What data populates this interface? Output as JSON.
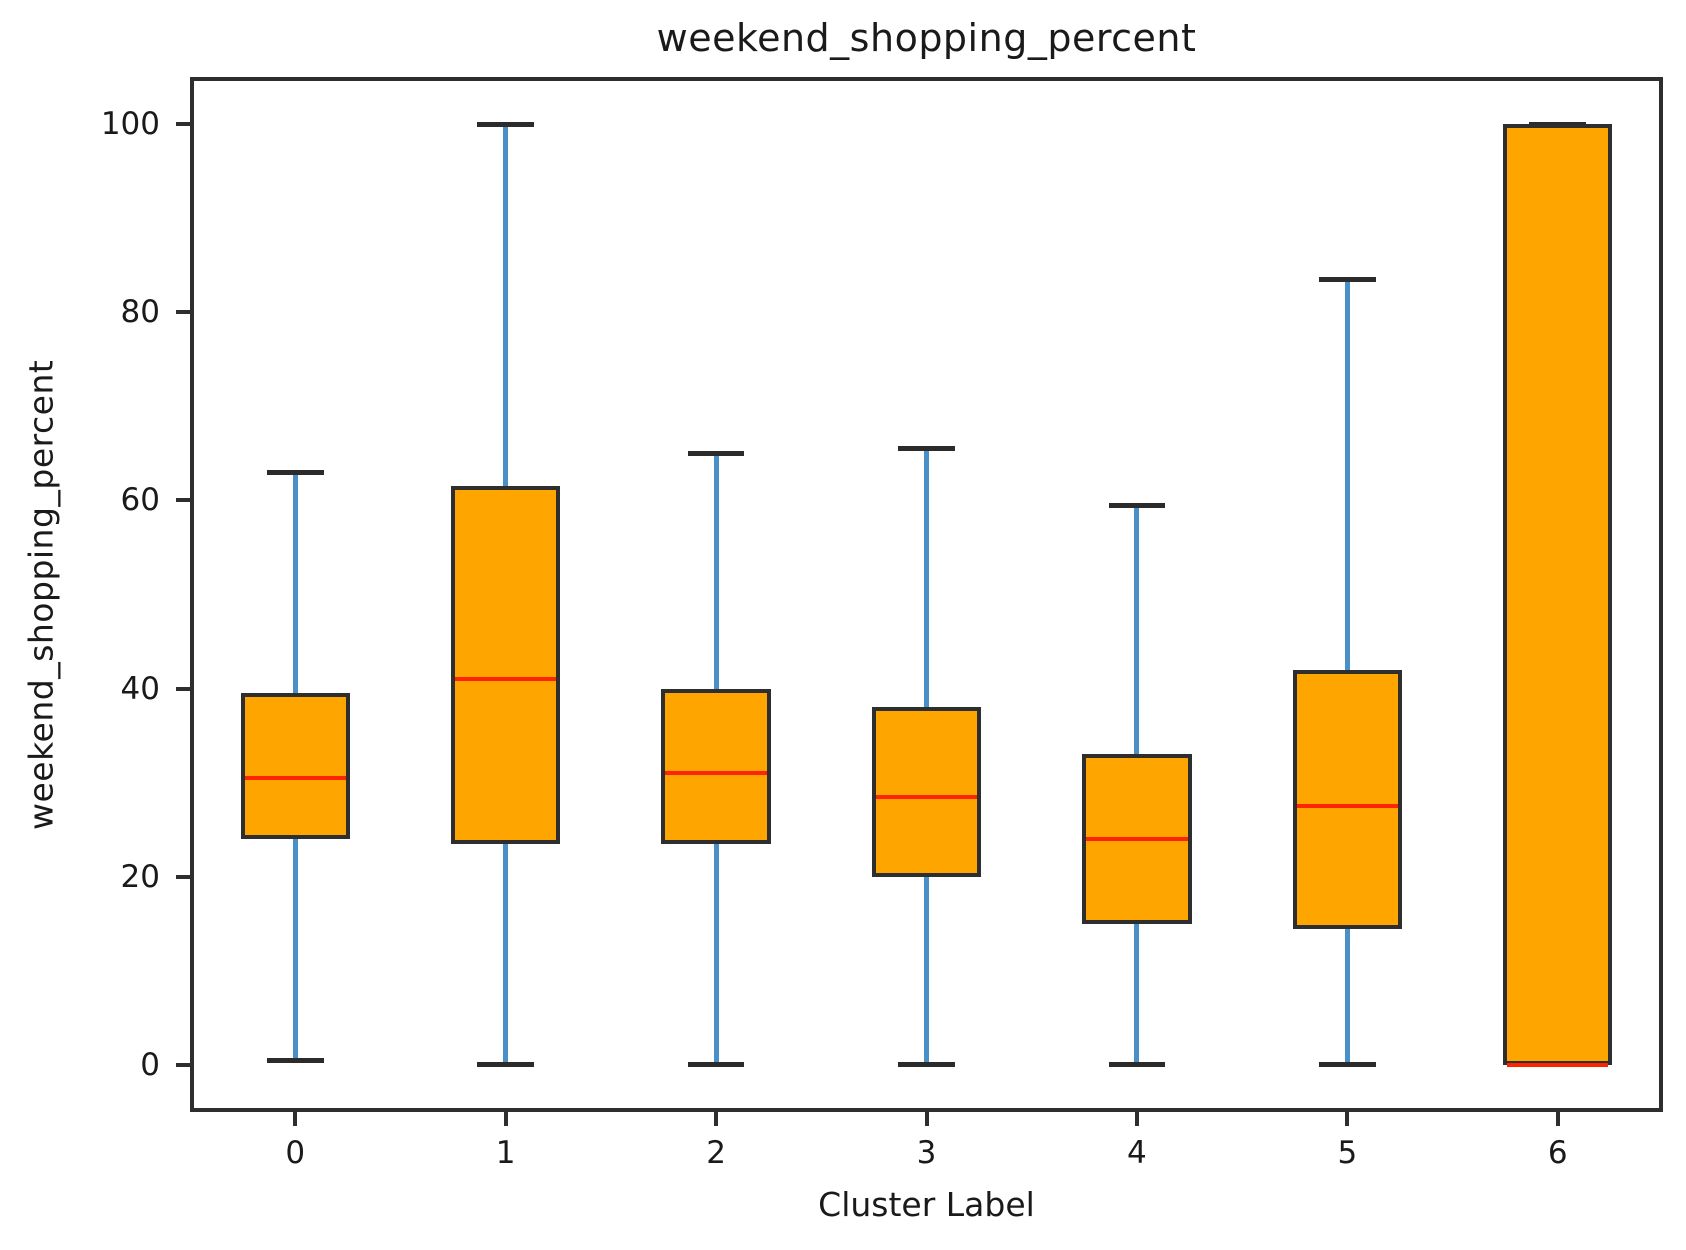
{
  "figure": {
    "background": "#ffffff"
  },
  "chart_data": {
    "type": "boxplot",
    "title": "weekend_shopping_percent",
    "xlabel": "Cluster Label",
    "ylabel": "weekend_shopping_percent",
    "categories": [
      "0",
      "1",
      "2",
      "3",
      "4",
      "5",
      "6"
    ],
    "y_ticks": [
      0,
      20,
      40,
      60,
      80,
      100
    ],
    "ylim": [
      -5,
      105
    ],
    "xlim": [
      -0.5,
      6.5
    ],
    "grid": false,
    "legend": "none",
    "colors": {
      "box_fill": "#FFA500",
      "box_edge": "#2e2e2e",
      "whisker": "#4a90c8",
      "cap": "#2b2b2b",
      "median": "#ff2400",
      "text": "#1a1a1a"
    },
    "series": [
      {
        "cluster": "0",
        "whisker_low": 0.5,
        "q1": 24,
        "median": 30.5,
        "q3": 39.5,
        "whisker_high": 63
      },
      {
        "cluster": "1",
        "whisker_low": 0,
        "q1": 23.5,
        "median": 41,
        "q3": 61.5,
        "whisker_high": 100
      },
      {
        "cluster": "2",
        "whisker_low": 0,
        "q1": 23.5,
        "median": 31,
        "q3": 40,
        "whisker_high": 65
      },
      {
        "cluster": "3",
        "whisker_low": 0,
        "q1": 20,
        "median": 28.5,
        "q3": 38,
        "whisker_high": 65.5
      },
      {
        "cluster": "4",
        "whisker_low": 0,
        "q1": 15,
        "median": 24,
        "q3": 33,
        "whisker_high": 59.5
      },
      {
        "cluster": "5",
        "whisker_low": 0,
        "q1": 14.5,
        "median": 27.5,
        "q3": 42,
        "whisker_high": 83.5
      },
      {
        "cluster": "6",
        "whisker_low": 0,
        "q1": 0,
        "median": 0,
        "q3": 100,
        "whisker_high": 100
      }
    ]
  }
}
